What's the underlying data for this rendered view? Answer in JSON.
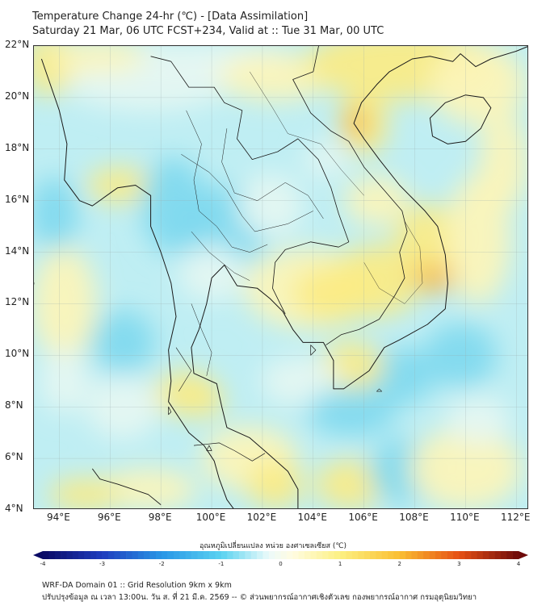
{
  "title": {
    "line1": "Temperature Change 24-hr (℃) - [Data Assimilation]",
    "line2": "Saturday 21 Mar, 06 UTC FCST+234, Valid at :: Tue 31 Mar, 00 UTC"
  },
  "map": {
    "lat_labels": [
      "22°N",
      "20°N",
      "18°N",
      "16°N",
      "14°N",
      "12°N",
      "10°N",
      "8°N",
      "6°N",
      "4°N"
    ],
    "lon_labels": [
      "94°E",
      "96°E",
      "98°E",
      "100°E",
      "102°E",
      "104°E",
      "106°E",
      "108°E",
      "110°E",
      "112°E"
    ],
    "lat_range": [
      4,
      22
    ],
    "lon_range": [
      93,
      112.5
    ],
    "colors": {
      "background": "#bfeef3",
      "pale": "#e6f7f2",
      "cyan": "#7fd9ef",
      "yellow": "#fbec84",
      "pale_yellow": "#fdf5b8",
      "orange": "#f7b23a",
      "coast": "#1a1a1a"
    }
  },
  "colorbar": {
    "title": "อุณหภูมิเปลี่ยนแปลง หน่วย องศาเซลเซียส (℃)",
    "ticks": [
      "-4",
      "-3",
      "-2",
      "-1",
      "0",
      "1",
      "2",
      "3",
      "4"
    ],
    "min": -4,
    "max": 4
  },
  "footer": {
    "line1": "WRF-DA Domain 01 :: Grid Resolution 9km x 9km",
    "line2": "ปรับปรุงข้อมูล ณ เวลา 13:00น. วัน ส. ที่ 21 มี.ค. 2569 -- © ส่วนพยากรณ์อากาศเชิงตัวเลข กองพยากรณ์อากาศ กรมอุตุนิยมวิทยา"
  }
}
